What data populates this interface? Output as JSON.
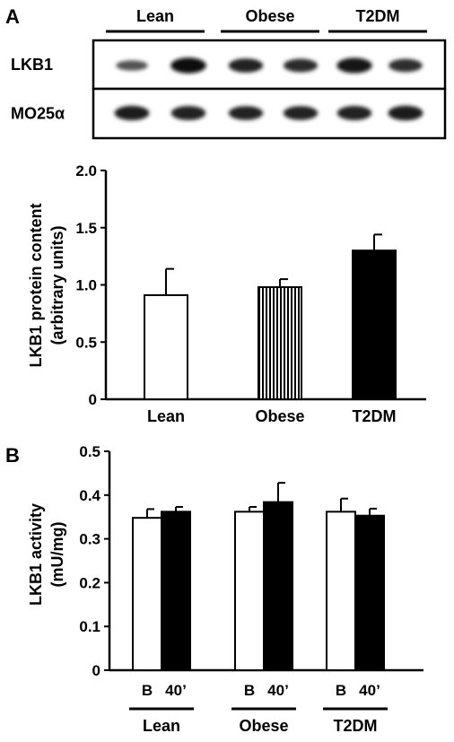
{
  "blot": {
    "panel_label": "A",
    "groups": [
      "Lean",
      "Obese",
      "T2DM"
    ],
    "rows": [
      {
        "label": "LKB1",
        "band_intensity": [
          0.45,
          0.95,
          0.8,
          0.75,
          0.92,
          0.72
        ]
      },
      {
        "label": "MO25α",
        "band_intensity": [
          0.85,
          0.82,
          0.8,
          0.8,
          0.83,
          0.88
        ]
      }
    ]
  },
  "chart_data": [
    {
      "panel_label": "A",
      "type": "bar",
      "categories": [
        "Lean",
        "Obese",
        "T2DM"
      ],
      "values": [
        0.91,
        0.98,
        1.3
      ],
      "errors": [
        0.23,
        0.07,
        0.14
      ],
      "fills": [
        "white",
        "vertical-stripes",
        "black"
      ],
      "ylabel": "LKB1 protein content",
      "ylabel2": "(arbitrary units)",
      "ylim": [
        0,
        2.0
      ],
      "yticks": [
        "0",
        "0.5",
        "1.0",
        "1.5",
        "2.0"
      ],
      "ytick_values": [
        0,
        0.5,
        1.0,
        1.5,
        2.0
      ]
    },
    {
      "panel_label": "B",
      "type": "bar",
      "groups": [
        "Lean",
        "Obese",
        "T2DM"
      ],
      "subcategories": [
        "B",
        "40’"
      ],
      "series": [
        {
          "values": [
            0.348,
            0.362,
            0.362
          ],
          "errors": [
            0.02,
            0.011,
            0.03
          ],
          "color": "#ffffff"
        },
        {
          "values": [
            0.362,
            0.384,
            0.353
          ],
          "errors": [
            0.011,
            0.044,
            0.016
          ],
          "color": "#000000"
        }
      ],
      "ylabel": "LKB1 activity",
      "ylabel2": "(mU/mg)",
      "ylim": [
        0,
        0.5
      ],
      "yticks": [
        "0",
        "0.1",
        "0.2",
        "0.3",
        "0.4",
        "0.5"
      ],
      "ytick_values": [
        0,
        0.1,
        0.2,
        0.3,
        0.4,
        0.5
      ]
    }
  ]
}
